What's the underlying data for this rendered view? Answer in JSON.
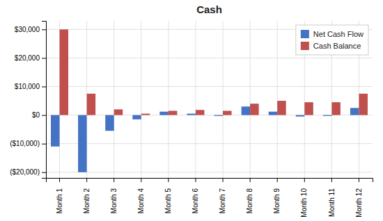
{
  "chart_data": {
    "type": "bar",
    "title": "Cash",
    "categories": [
      "Month 1",
      "Month 2",
      "Month 3",
      "Month 4",
      "Month 5",
      "Month 6",
      "Month 7",
      "Month 8",
      "Month 9",
      "Month 10",
      "Month 11",
      "Month 12"
    ],
    "series": [
      {
        "name": "Net Cash Flow",
        "color": "#4472C4",
        "values": [
          -11000,
          -20000,
          -5500,
          -1500,
          1200,
          500,
          -300,
          3000,
          1200,
          -500,
          -300,
          2500
        ]
      },
      {
        "name": "Cash Balance",
        "color": "#C0504D",
        "values": [
          30000,
          7500,
          2000,
          500,
          1500,
          1800,
          1500,
          4000,
          5000,
          4500,
          4500,
          7500
        ]
      }
    ],
    "ylim": [
      -22000,
      33000
    ],
    "yticks": [
      {
        "value": -20000,
        "label": "($20,000)"
      },
      {
        "value": -10000,
        "label": "($10,000)"
      },
      {
        "value": 0,
        "label": "$0"
      },
      {
        "value": 10000,
        "label": "$10,000"
      },
      {
        "value": 20000,
        "label": "$20,000"
      },
      {
        "value": 30000,
        "label": "$30,000"
      }
    ],
    "grid": true,
    "legend": "upper right"
  }
}
